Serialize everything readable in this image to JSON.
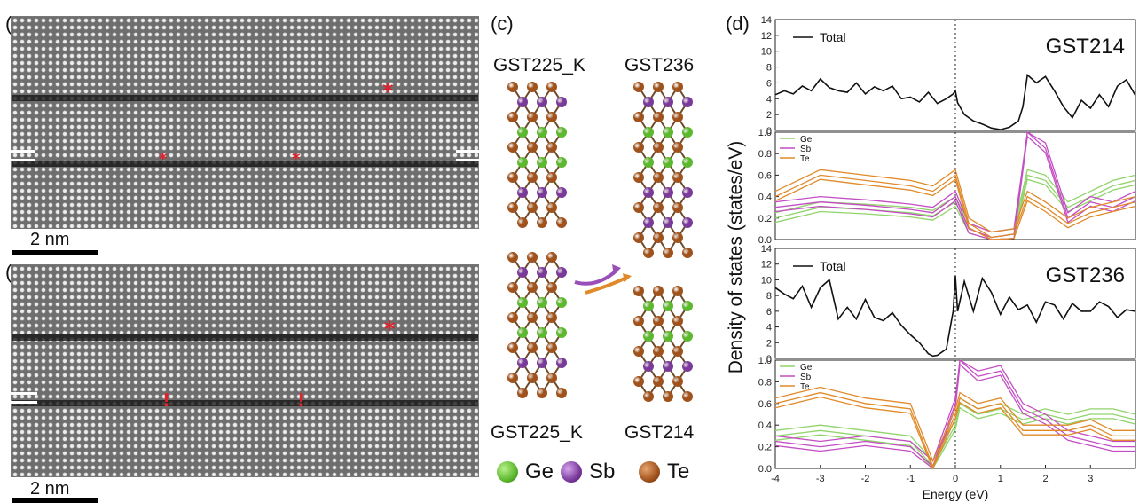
{
  "panels": {
    "a": {
      "label": "(a)",
      "scale": "2 nm"
    },
    "b": {
      "label": "(b)",
      "scale": "2 nm"
    },
    "c": {
      "label": "(c)",
      "top_left": "GST225_K",
      "top_right": "GST236",
      "bottom_left": "GST225_K",
      "bottom_right": "GST214"
    },
    "d": {
      "label": "(d)"
    }
  },
  "legend_atoms": [
    {
      "name": "Ge",
      "color": "#5cb82e"
    },
    {
      "name": "Sb",
      "color": "#7a3a9a"
    },
    {
      "name": "Te",
      "color": "#a0521c"
    }
  ],
  "colors": {
    "ge": "#5cb82e",
    "sb": "#7a3a9a",
    "te": "#a0521c",
    "arrow_purple": "#9a4fb8",
    "arrow_orange": "#e08a2a",
    "marker_red": "#e0202a"
  },
  "chart_data": [
    {
      "type": "line",
      "panel": "d-top-total",
      "title": "GST214",
      "legend": [
        "Total"
      ],
      "xlim": [
        -4,
        4
      ],
      "ylim": [
        0,
        14
      ],
      "yticks": [
        "0",
        "2",
        "4",
        "6",
        "8",
        "10",
        "12",
        "14"
      ],
      "series": [
        {
          "name": "Total",
          "x": [
            -4,
            -3.8,
            -3.6,
            -3.4,
            -3.2,
            -3.0,
            -2.8,
            -2.6,
            -2.4,
            -2.2,
            -2.0,
            -1.8,
            -1.6,
            -1.4,
            -1.2,
            -1.0,
            -0.8,
            -0.6,
            -0.4,
            -0.2,
            -0.05,
            0,
            0.05,
            0.2,
            0.4,
            0.6,
            0.8,
            1.0,
            1.2,
            1.4,
            1.5,
            1.6,
            1.8,
            2.0,
            2.2,
            2.4,
            2.6,
            2.8,
            3.0,
            3.2,
            3.4,
            3.6,
            3.8,
            4.0
          ],
          "y": [
            4.5,
            5.0,
            4.6,
            5.6,
            5.0,
            6.5,
            5.4,
            5.0,
            4.8,
            6.0,
            4.6,
            5.5,
            5.0,
            5.6,
            4.0,
            4.2,
            3.6,
            4.8,
            3.4,
            4.0,
            4.6,
            5.0,
            3.5,
            2.0,
            1.2,
            0.8,
            0.3,
            0.1,
            0.4,
            1.2,
            3.0,
            7.0,
            6.0,
            6.8,
            5.0,
            3.0,
            1.6,
            3.8,
            2.8,
            4.5,
            3.0,
            5.6,
            6.4,
            4.4
          ]
        }
      ]
    },
    {
      "type": "line",
      "panel": "d-top-partial",
      "legend": [
        "Ge",
        "Sb",
        "Te"
      ],
      "xlim": [
        -4,
        4
      ],
      "ylim": [
        0,
        1.0
      ],
      "yticks": [
        "0.0",
        "0.2",
        "0.4",
        "0.6",
        "0.8",
        "1.0"
      ],
      "series": [
        {
          "name": "Ge",
          "x": [
            -4,
            -3,
            -2,
            -1,
            -0.5,
            0,
            0.3,
            0.8,
            1.3,
            1.6,
            2,
            2.5,
            3,
            3.5,
            4
          ],
          "y": [
            0.2,
            0.3,
            0.28,
            0.25,
            0.22,
            0.35,
            0.1,
            0.02,
            0.05,
            0.6,
            0.55,
            0.3,
            0.4,
            0.5,
            0.55
          ]
        },
        {
          "name": "Sb",
          "x": [
            -4,
            -3,
            -2,
            -1,
            -0.5,
            0,
            0.3,
            0.8,
            1.3,
            1.6,
            2,
            2.5,
            3,
            3.5,
            4
          ],
          "y": [
            0.3,
            0.35,
            0.32,
            0.28,
            0.25,
            0.4,
            0.1,
            0.02,
            0.05,
            1.0,
            0.85,
            0.2,
            0.35,
            0.3,
            0.4
          ]
        },
        {
          "name": "Te",
          "x": [
            -4,
            -3,
            -2,
            -1,
            -0.5,
            0,
            0.3,
            0.8,
            1.3,
            1.6,
            2,
            2.5,
            3,
            3.5,
            4
          ],
          "y": [
            0.4,
            0.6,
            0.55,
            0.5,
            0.45,
            0.6,
            0.15,
            0.02,
            0.05,
            0.4,
            0.3,
            0.15,
            0.25,
            0.3,
            0.35
          ]
        }
      ]
    },
    {
      "type": "line",
      "panel": "d-bottom-total",
      "title": "GST236",
      "legend": [
        "Total"
      ],
      "xlim": [
        -4,
        4
      ],
      "ylim": [
        0,
        14
      ],
      "yticks": [
        "0",
        "2",
        "4",
        "6",
        "8",
        "10",
        "12",
        "14"
      ],
      "series": [
        {
          "name": "Total",
          "x": [
            -4,
            -3.8,
            -3.6,
            -3.4,
            -3.2,
            -3.0,
            -2.8,
            -2.6,
            -2.4,
            -2.2,
            -2.0,
            -1.8,
            -1.6,
            -1.4,
            -1.2,
            -1.0,
            -0.8,
            -0.6,
            -0.5,
            -0.4,
            -0.2,
            -0.05,
            0,
            0.05,
            0.2,
            0.4,
            0.6,
            0.8,
            1.0,
            1.2,
            1.4,
            1.6,
            1.8,
            2.0,
            2.2,
            2.4,
            2.6,
            2.8,
            3.0,
            3.2,
            3.4,
            3.6,
            3.8,
            4.0
          ],
          "y": [
            9.0,
            8.2,
            7.6,
            9.2,
            6.5,
            9.0,
            10.0,
            5.0,
            6.5,
            5.0,
            7.5,
            5.2,
            4.8,
            5.8,
            4.2,
            3.0,
            2.0,
            0.6,
            0.3,
            0.4,
            1.2,
            6.0,
            10.5,
            6.0,
            9.8,
            6.0,
            10.2,
            8.4,
            5.6,
            7.8,
            6.2,
            6.8,
            4.6,
            7.2,
            6.8,
            5.0,
            7.0,
            6.0,
            6.0,
            7.2,
            6.6,
            5.2,
            6.2,
            6.0
          ]
        }
      ]
    },
    {
      "type": "line",
      "panel": "d-bottom-partial",
      "legend": [
        "Ge",
        "Sb",
        "Te"
      ],
      "xlabel": "Energy (eV)",
      "ylabel": "Density of states (states/eV)",
      "xlim": [
        -4,
        4
      ],
      "ylim": [
        0,
        1.0
      ],
      "xticks": [
        "-4",
        "-3",
        "-2",
        "-1",
        "0",
        "1",
        "2",
        "3"
      ],
      "yticks": [
        "0.0",
        "0.2",
        "0.4",
        "0.6",
        "0.8",
        "1.0"
      ],
      "series": [
        {
          "name": "Ge",
          "x": [
            -4,
            -3,
            -2,
            -1,
            -0.5,
            0,
            0.1,
            0.5,
            1,
            1.5,
            2,
            2.5,
            3,
            3.5,
            4
          ],
          "y": [
            0.3,
            0.35,
            0.3,
            0.25,
            0.02,
            0.4,
            0.6,
            0.5,
            0.55,
            0.45,
            0.5,
            0.45,
            0.5,
            0.5,
            0.45
          ]
        },
        {
          "name": "Sb",
          "x": [
            -4,
            -3,
            -2,
            -1,
            -0.5,
            0,
            0.1,
            0.5,
            1,
            1.5,
            2,
            2.5,
            3,
            3.5,
            4
          ],
          "y": [
            0.25,
            0.2,
            0.25,
            0.2,
            0.02,
            0.6,
            1.0,
            0.85,
            0.9,
            0.55,
            0.45,
            0.3,
            0.25,
            0.2,
            0.2
          ]
        },
        {
          "name": "Te",
          "x": [
            -4,
            -3,
            -2,
            -1,
            -0.5,
            0,
            0.1,
            0.5,
            1,
            1.5,
            2,
            2.5,
            3,
            3.5,
            4
          ],
          "y": [
            0.6,
            0.7,
            0.6,
            0.55,
            0.02,
            0.5,
            0.65,
            0.55,
            0.6,
            0.35,
            0.35,
            0.35,
            0.4,
            0.3,
            0.3
          ]
        }
      ]
    }
  ]
}
